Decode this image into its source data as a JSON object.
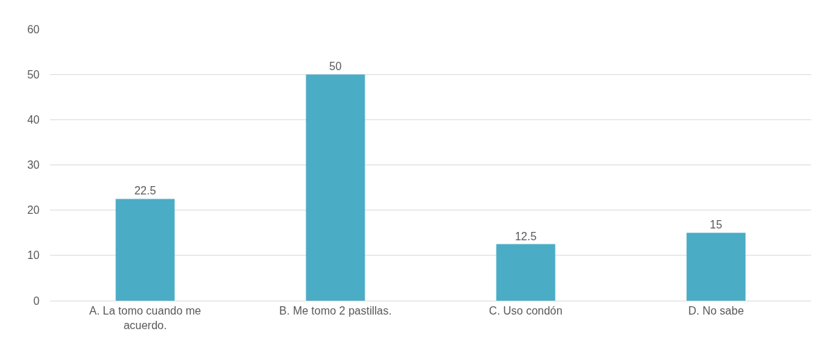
{
  "chart_data": {
    "type": "bar",
    "categories": [
      "A. La tomo cuando me acuerdo.",
      "B. Me tomo 2 pastillas.",
      "C. Uso condón",
      "D. No sabe"
    ],
    "values": [
      22.5,
      50,
      12.5,
      15
    ],
    "color": "#4bacc6",
    "ylim": [
      0,
      60
    ],
    "yticks": [
      0,
      10,
      20,
      30,
      40,
      50,
      60
    ],
    "grid": "y",
    "data_labels": true,
    "legend": false
  }
}
